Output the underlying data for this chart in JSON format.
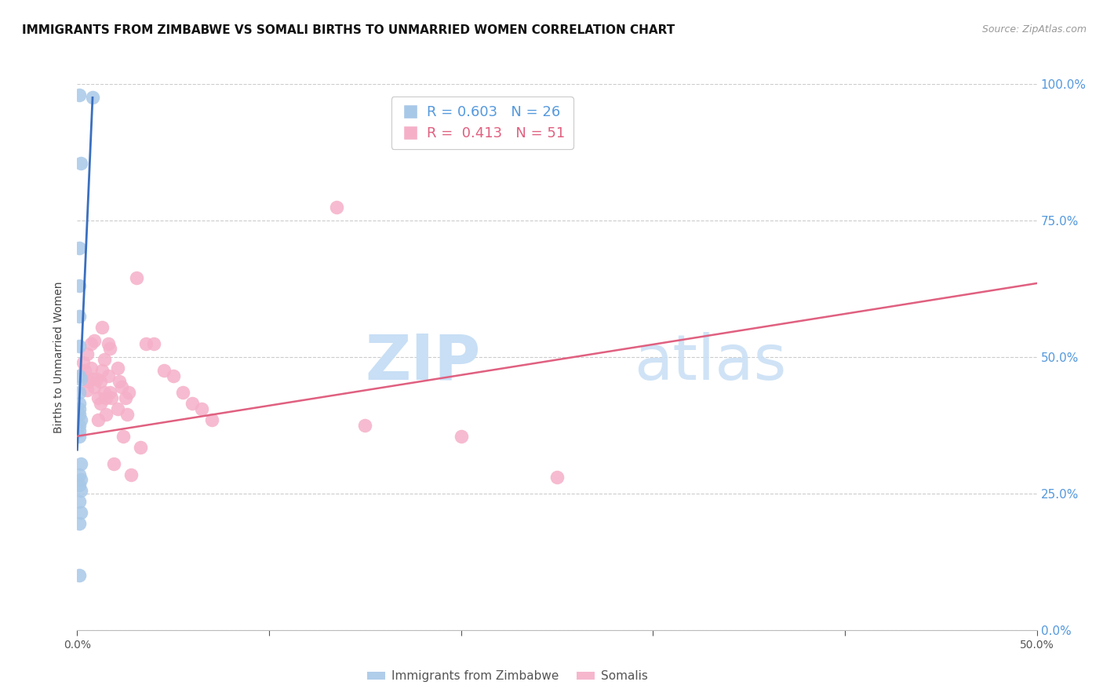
{
  "title": "IMMIGRANTS FROM ZIMBABWE VS SOMALI BIRTHS TO UNMARRIED WOMEN CORRELATION CHART",
  "source": "Source: ZipAtlas.com",
  "ylabel": "Births to Unmarried Women",
  "xlim": [
    0.0,
    0.5
  ],
  "ylim": [
    0.0,
    1.0
  ],
  "xticks": [
    0.0,
    0.1,
    0.2,
    0.3,
    0.4,
    0.5
  ],
  "yticks": [
    0.0,
    0.25,
    0.5,
    0.75,
    1.0
  ],
  "zimbabwe_color": "#a8c8e8",
  "zimbabwe_edge_color": "#7aafd4",
  "somali_color": "#f5b0c8",
  "somali_edge_color": "#e07090",
  "zimbabwe_line_color": "#3a6fbf",
  "somali_line_color": "#e06080",
  "background_color": "#ffffff",
  "grid_color": "#cccccc",
  "right_tick_color": "#5599dd",
  "title_fontsize": 11,
  "zimbabwe_points": [
    [
      0.001,
      0.98
    ],
    [
      0.008,
      0.975
    ],
    [
      0.002,
      0.855
    ],
    [
      0.001,
      0.7
    ],
    [
      0.001,
      0.63
    ],
    [
      0.001,
      0.575
    ],
    [
      0.001,
      0.52
    ],
    [
      0.001,
      0.465
    ],
    [
      0.002,
      0.46
    ],
    [
      0.001,
      0.435
    ],
    [
      0.001,
      0.415
    ],
    [
      0.001,
      0.405
    ],
    [
      0.001,
      0.395
    ],
    [
      0.002,
      0.385
    ],
    [
      0.001,
      0.375
    ],
    [
      0.001,
      0.365
    ],
    [
      0.001,
      0.355
    ],
    [
      0.002,
      0.305
    ],
    [
      0.001,
      0.285
    ],
    [
      0.002,
      0.275
    ],
    [
      0.001,
      0.265
    ],
    [
      0.002,
      0.255
    ],
    [
      0.001,
      0.235
    ],
    [
      0.002,
      0.215
    ],
    [
      0.001,
      0.195
    ],
    [
      0.001,
      0.1
    ]
  ],
  "somali_points": [
    [
      0.002,
      0.465
    ],
    [
      0.003,
      0.49
    ],
    [
      0.004,
      0.475
    ],
    [
      0.005,
      0.44
    ],
    [
      0.005,
      0.505
    ],
    [
      0.006,
      0.455
    ],
    [
      0.007,
      0.48
    ],
    [
      0.007,
      0.525
    ],
    [
      0.008,
      0.46
    ],
    [
      0.009,
      0.53
    ],
    [
      0.009,
      0.445
    ],
    [
      0.01,
      0.46
    ],
    [
      0.011,
      0.425
    ],
    [
      0.011,
      0.385
    ],
    [
      0.012,
      0.455
    ],
    [
      0.012,
      0.415
    ],
    [
      0.013,
      0.555
    ],
    [
      0.013,
      0.475
    ],
    [
      0.014,
      0.495
    ],
    [
      0.014,
      0.435
    ],
    [
      0.015,
      0.425
    ],
    [
      0.015,
      0.395
    ],
    [
      0.016,
      0.525
    ],
    [
      0.016,
      0.465
    ],
    [
      0.017,
      0.515
    ],
    [
      0.017,
      0.435
    ],
    [
      0.018,
      0.425
    ],
    [
      0.019,
      0.305
    ],
    [
      0.021,
      0.48
    ],
    [
      0.021,
      0.405
    ],
    [
      0.022,
      0.455
    ],
    [
      0.023,
      0.445
    ],
    [
      0.024,
      0.355
    ],
    [
      0.025,
      0.425
    ],
    [
      0.026,
      0.395
    ],
    [
      0.027,
      0.435
    ],
    [
      0.028,
      0.285
    ],
    [
      0.031,
      0.645
    ],
    [
      0.033,
      0.335
    ],
    [
      0.036,
      0.525
    ],
    [
      0.04,
      0.525
    ],
    [
      0.045,
      0.475
    ],
    [
      0.05,
      0.465
    ],
    [
      0.055,
      0.435
    ],
    [
      0.06,
      0.415
    ],
    [
      0.065,
      0.405
    ],
    [
      0.07,
      0.385
    ],
    [
      0.135,
      0.775
    ],
    [
      0.15,
      0.375
    ],
    [
      0.2,
      0.355
    ],
    [
      0.25,
      0.28
    ]
  ],
  "zw_trend_x": [
    0.0,
    0.008
  ],
  "zw_trend_y": [
    0.33,
    0.975
  ],
  "so_trend_x": [
    0.0,
    0.5
  ],
  "so_trend_y": [
    0.355,
    0.635
  ]
}
